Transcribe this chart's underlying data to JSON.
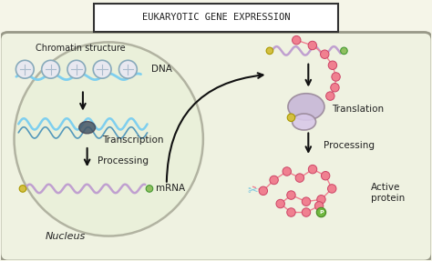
{
  "title": "EUKARYOTIC GENE EXPRESSION",
  "bg_color": "#f5f5e8",
  "cell_bg": "#eef2e0",
  "nucleus_bg": "#e8f0d8",
  "title_box_color": "#ffffff",
  "title_border": "#333333",
  "text_color": "#222222",
  "dna_color": "#7ecfef",
  "mrna_color": "#c0a0d0",
  "protein_color": "#f08090",
  "ribosome_color": "#c8b8d8",
  "arrow_color": "#111111",
  "histone_color": "#a8d8e8",
  "histone_fill": "#e8e8f0",
  "scissors_color": "#7ec8e0",
  "cap_color": "#d4c040",
  "poly_a_color": "#90c060",
  "nucleus_label": "Nucleus",
  "chromatin_label": "Chromatin structure",
  "dna_label": "DNA",
  "transcription_label": "Transcription",
  "processing_label1": "Processing",
  "mrna_label": "mRNA",
  "translation_label": "Translation",
  "processing_label2": "Processing",
  "active_protein_label": "Active\nprotein",
  "figsize": [
    4.74,
    2.87
  ],
  "dpi": 100
}
